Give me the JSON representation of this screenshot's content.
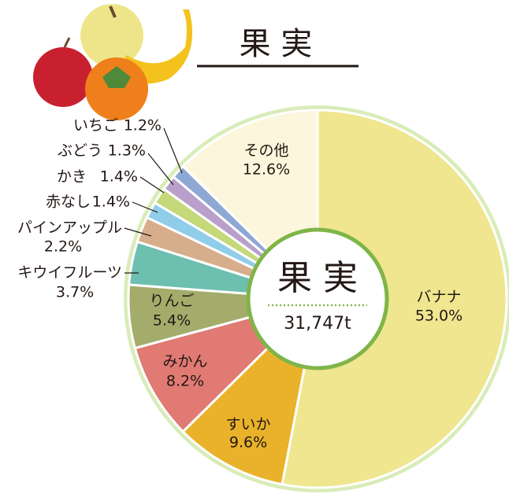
{
  "chart_data": {
    "type": "pie",
    "title": "果 実",
    "center_title": "果 実",
    "total_label": "31,747t",
    "categories": [
      "バナナ",
      "すいか",
      "みかん",
      "りんご",
      "キウイフルーツ",
      "パインアップル",
      "赤なし",
      "かき",
      "ぶどう",
      "いちご",
      "その他"
    ],
    "values": [
      53.0,
      9.6,
      8.2,
      5.4,
      3.7,
      2.2,
      1.4,
      1.4,
      1.3,
      1.2,
      12.6
    ],
    "value_labels": [
      "53.0%",
      "9.6%",
      "8.2%",
      "5.4%",
      "3.7%",
      "2.2%",
      "1.4%",
      "1.4%",
      "1.3%",
      "1.2%",
      "12.6%"
    ],
    "colors": [
      "#efe68f",
      "#e9b22a",
      "#e07a73",
      "#a3ac6a",
      "#6dbfb0",
      "#d6ae8c",
      "#8fcde9",
      "#c5d87a",
      "#b9a0cb",
      "#8ea8d4",
      "#fcf6dc"
    ]
  }
}
